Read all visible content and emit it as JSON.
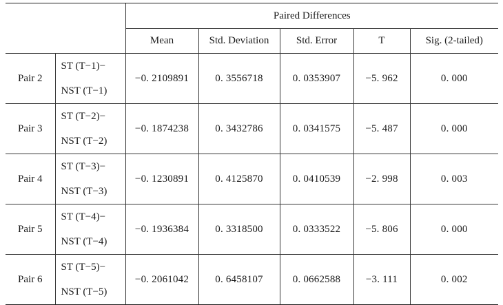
{
  "header": {
    "group_title": "Paired Differences",
    "columns": [
      "Mean",
      "Std.  Deviation",
      "Std.  Error",
      "T",
      "Sig. (2-tailed)"
    ]
  },
  "rows": [
    {
      "pair": "Pair 2",
      "line1": "ST (T−1)−",
      "line2": "NST (T−1)",
      "mean": "−0. 2109891",
      "sd": "0. 3556718",
      "se": "0. 0353907",
      "t": "−5. 962",
      "sig": "0. 000"
    },
    {
      "pair": "Pair 3",
      "line1": "ST (T−2)−",
      "line2": "NST (T−2)",
      "mean": "−0. 1874238",
      "sd": "0. 3432786",
      "se": "0. 0341575",
      "t": "−5. 487",
      "sig": "0. 000"
    },
    {
      "pair": "Pair 4",
      "line1": "ST (T−3)−",
      "line2": "NST (T−3)",
      "mean": "−0. 1230891",
      "sd": "0. 4125870",
      "se": "0. 0410539",
      "t": "−2. 998",
      "sig": "0. 003"
    },
    {
      "pair": "Pair 5",
      "line1": "ST (T−4)−",
      "line2": "NST (T−4)",
      "mean": "−0. 1936384",
      "sd": "0. 3318500",
      "se": "0. 0333522",
      "t": "−5. 806",
      "sig": "0. 000"
    },
    {
      "pair": "Pair 6",
      "line1": "ST (T−5)−",
      "line2": "NST (T−5)",
      "mean": "−0. 2061042",
      "sd": "0. 6458107",
      "se": "0. 0662588",
      "t": "−3. 111",
      "sig": "0. 002"
    }
  ]
}
